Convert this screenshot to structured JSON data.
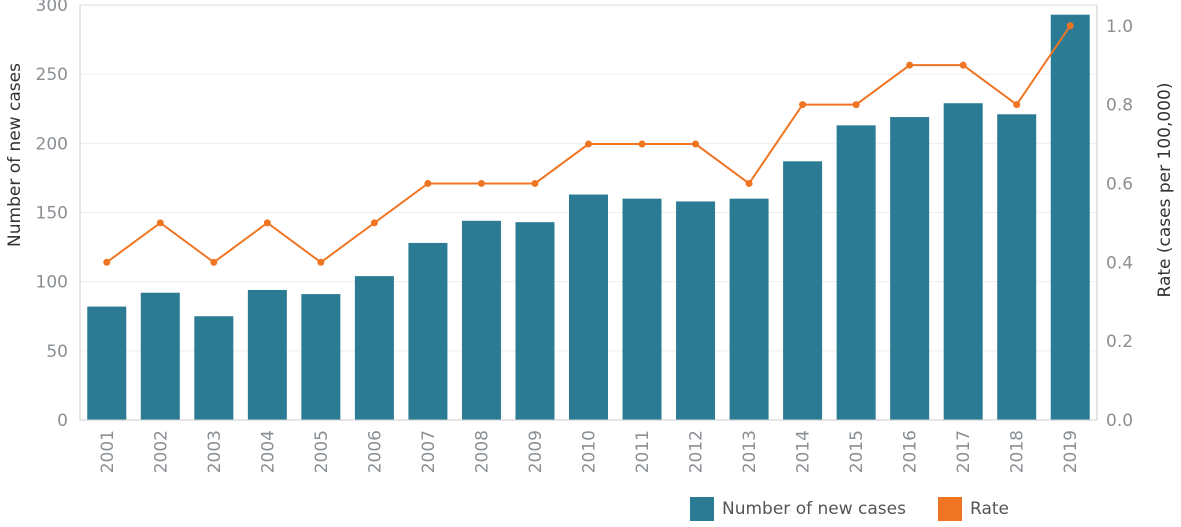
{
  "chart_data": {
    "type": "bar",
    "categories": [
      "2001",
      "2002",
      "2003",
      "2004",
      "2005",
      "2006",
      "2007",
      "2008",
      "2009",
      "2010",
      "2011",
      "2012",
      "2013",
      "2014",
      "2015",
      "2016",
      "2017",
      "2018",
      "2019"
    ],
    "series": [
      {
        "name": "Number of new cases",
        "type": "bar",
        "axis": "left",
        "color": "#2a7b93",
        "values": [
          82,
          92,
          75,
          94,
          91,
          104,
          128,
          144,
          143,
          163,
          160,
          158,
          160,
          187,
          213,
          219,
          229,
          221,
          293
        ]
      },
      {
        "name": "Rate",
        "type": "line",
        "axis": "right",
        "color": "#f07523",
        "values": [
          0.4,
          0.5,
          0.4,
          0.5,
          0.4,
          0.5,
          0.6,
          0.6,
          0.6,
          0.7,
          0.7,
          0.7,
          0.6,
          0.8,
          0.8,
          0.9,
          0.9,
          0.8,
          1.0
        ]
      }
    ],
    "ylabel": "Number of new cases",
    "y2label": "Rate (cases per 100,000)",
    "ylim": [
      0,
      300
    ],
    "y2lim": [
      0.0,
      1.0
    ],
    "yticks": [
      "0",
      "50",
      "100",
      "150",
      "200",
      "250",
      "300"
    ],
    "y2ticks": [
      "0.0",
      "0.2",
      "0.4",
      "0.6",
      "0.8",
      "1.0"
    ],
    "grid": true,
    "legend_position": "bottom-right"
  },
  "legend": {
    "bars_label": "Number of new cases",
    "line_label": "Rate"
  }
}
